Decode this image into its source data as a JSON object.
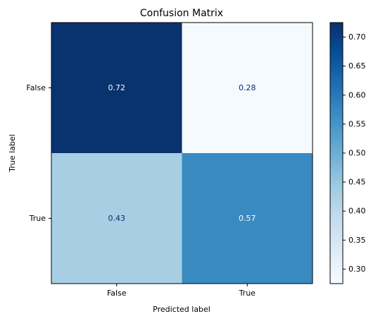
{
  "chart_data": {
    "type": "heatmap",
    "title": "Confusion Matrix",
    "xlabel": "Predicted label",
    "ylabel": "True label",
    "x_categories": [
      "False",
      "True"
    ],
    "y_categories": [
      "False",
      "True"
    ],
    "values": [
      [
        0.72,
        0.28
      ],
      [
        0.43,
        0.57
      ]
    ],
    "cell_labels": [
      [
        "0.72",
        "0.28"
      ],
      [
        "0.43",
        "0.57"
      ]
    ],
    "colormap": "Blues",
    "colorbar": {
      "range": [
        0.275,
        0.725
      ],
      "ticks": [
        0.3,
        0.35,
        0.4,
        0.45,
        0.5,
        0.55,
        0.6,
        0.65,
        0.7
      ],
      "tick_labels": [
        "0.30",
        "0.35",
        "0.40",
        "0.45",
        "0.50",
        "0.55",
        "0.60",
        "0.65",
        "0.70"
      ]
    },
    "grid": false
  }
}
